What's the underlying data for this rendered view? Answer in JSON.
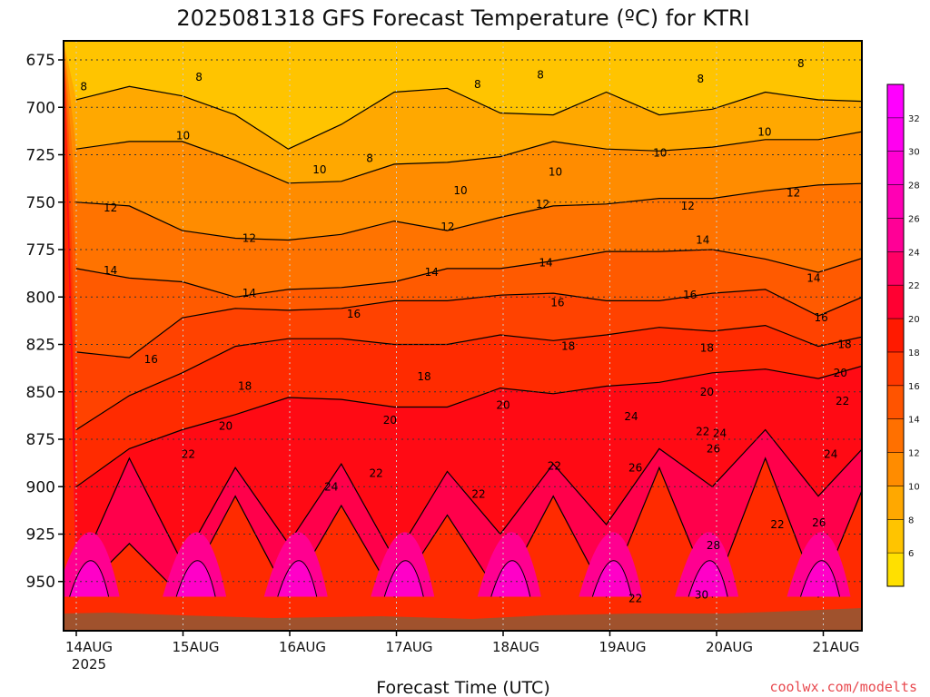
{
  "chart_data": {
    "type": "heatmap",
    "title": "2025081318 GFS Forecast Temperature (ºC) for KTRI",
    "xlabel": "Forecast Time (UTC)",
    "ylabel": "",
    "credit": "coolwx.com/modelts",
    "ylim": [
      960,
      660
    ],
    "xlim": [
      0.0,
      7.45
    ],
    "x_ticks": [
      "14AUG",
      "15AUG",
      "16AUG",
      "17AUG",
      "18AUG",
      "19AUG",
      "20AUG",
      "21AUG"
    ],
    "x_tick_sub": "2025",
    "y_ticks": [
      675,
      700,
      725,
      750,
      775,
      800,
      825,
      850,
      875,
      900,
      925,
      950
    ],
    "colorbar": {
      "levels": [
        6,
        8,
        10,
        12,
        14,
        16,
        18,
        20,
        22,
        24,
        26,
        28,
        30,
        32
      ],
      "colors": [
        "#ffe000",
        "#ffc400",
        "#ffa800",
        "#ff8c00",
        "#ff7000",
        "#ff5400",
        "#ff3800",
        "#ff1a00",
        "#ff0032",
        "#ff0064",
        "#ff0096",
        "#ff00b4",
        "#ff00d2",
        "#ff00f0",
        "#ff00ff"
      ]
    },
    "series": [
      {
        "level": 8,
        "pressure": [
          696,
          689,
          694,
          704,
          722,
          709,
          692,
          690,
          703,
          704,
          692,
          704,
          701,
          692,
          696,
          697
        ]
      },
      {
        "level": 10,
        "pressure": [
          722,
          718,
          718,
          728,
          740,
          739,
          730,
          729,
          726,
          718,
          722,
          723,
          721,
          717,
          717,
          712
        ]
      },
      {
        "level": 12,
        "pressure": [
          750,
          752,
          765,
          769,
          770,
          767,
          760,
          765,
          758,
          752,
          751,
          748,
          748,
          744,
          741,
          740
        ]
      },
      {
        "level": 14,
        "pressure": [
          785,
          790,
          792,
          800,
          796,
          795,
          792,
          785,
          785,
          781,
          776,
          776,
          775,
          780,
          787,
          778
        ]
      },
      {
        "level": 16,
        "pressure": [
          829,
          832,
          811,
          806,
          807,
          806,
          802,
          802,
          799,
          798,
          802,
          802,
          798,
          796,
          810,
          798
        ]
      },
      {
        "level": 18,
        "pressure": [
          870,
          852,
          840,
          826,
          822,
          822,
          825,
          825,
          820,
          823,
          820,
          816,
          818,
          815,
          826,
          820
        ]
      },
      {
        "level": 20,
        "pressure": [
          900,
          880,
          870,
          862,
          853,
          854,
          858,
          858,
          848,
          851,
          847,
          845,
          840,
          838,
          843,
          835
        ]
      },
      {
        "level": 22,
        "pressure": [
          948,
          885,
          940,
          890,
          930,
          888,
          938,
          892,
          925,
          888,
          920,
          880,
          900,
          870,
          905,
          875
        ]
      },
      {
        "level": 24,
        "pressure": [
          958,
          930,
          958,
          905,
          958,
          910,
          958,
          915,
          958,
          905,
          958,
          890,
          958,
          885,
          958,
          890
        ]
      }
    ],
    "contour_labels": [
      {
        "text": "8",
        "x": 0.07,
        "p": 689
      },
      {
        "text": "8",
        "x": 1.15,
        "p": 684
      },
      {
        "text": "8",
        "x": 2.75,
        "p": 727
      },
      {
        "text": "8",
        "x": 3.76,
        "p": 688
      },
      {
        "text": "8",
        "x": 4.35,
        "p": 683
      },
      {
        "text": "8",
        "x": 5.85,
        "p": 685
      },
      {
        "text": "8",
        "x": 6.79,
        "p": 677
      },
      {
        "text": "10",
        "x": 1.0,
        "p": 715
      },
      {
        "text": "10",
        "x": 2.28,
        "p": 733
      },
      {
        "text": "10",
        "x": 3.6,
        "p": 744
      },
      {
        "text": "10",
        "x": 4.49,
        "p": 734
      },
      {
        "text": "10",
        "x": 5.47,
        "p": 724
      },
      {
        "text": "10",
        "x": 6.45,
        "p": 713
      },
      {
        "text": "12",
        "x": 0.32,
        "p": 753
      },
      {
        "text": "12",
        "x": 1.62,
        "p": 769
      },
      {
        "text": "12",
        "x": 3.48,
        "p": 763
      },
      {
        "text": "12",
        "x": 4.37,
        "p": 751
      },
      {
        "text": "12",
        "x": 5.73,
        "p": 752
      },
      {
        "text": "12",
        "x": 6.72,
        "p": 745
      },
      {
        "text": "14",
        "x": 0.32,
        "p": 786
      },
      {
        "text": "14",
        "x": 1.62,
        "p": 798
      },
      {
        "text": "14",
        "x": 3.33,
        "p": 787
      },
      {
        "text": "14",
        "x": 4.4,
        "p": 782
      },
      {
        "text": "14",
        "x": 5.87,
        "p": 770
      },
      {
        "text": "14",
        "x": 6.91,
        "p": 790
      },
      {
        "text": "16",
        "x": 0.7,
        "p": 833
      },
      {
        "text": "16",
        "x": 2.6,
        "p": 809
      },
      {
        "text": "16",
        "x": 4.51,
        "p": 803
      },
      {
        "text": "16",
        "x": 5.75,
        "p": 799
      },
      {
        "text": "16",
        "x": 6.98,
        "p": 811
      },
      {
        "text": "18",
        "x": 1.58,
        "p": 847
      },
      {
        "text": "18",
        "x": 3.26,
        "p": 842
      },
      {
        "text": "18",
        "x": 4.61,
        "p": 826
      },
      {
        "text": "18",
        "x": 5.91,
        "p": 827
      },
      {
        "text": "18",
        "x": 7.2,
        "p": 825
      },
      {
        "text": "20",
        "x": 1.4,
        "p": 868
      },
      {
        "text": "20",
        "x": 2.94,
        "p": 865
      },
      {
        "text": "20",
        "x": 4.0,
        "p": 857
      },
      {
        "text": "20",
        "x": 5.91,
        "p": 850
      },
      {
        "text": "20",
        "x": 7.16,
        "p": 840
      },
      {
        "text": "22",
        "x": 1.05,
        "p": 883
      },
      {
        "text": "22",
        "x": 2.81,
        "p": 893
      },
      {
        "text": "22",
        "x": 3.77,
        "p": 904
      },
      {
        "text": "22",
        "x": 4.48,
        "p": 889
      },
      {
        "text": "22",
        "x": 5.87,
        "p": 871
      },
      {
        "text": "22",
        "x": 6.57,
        "p": 920
      },
      {
        "text": "22",
        "x": 5.24,
        "p": 959
      },
      {
        "text": "22",
        "x": 7.18,
        "p": 855
      },
      {
        "text": "24",
        "x": 2.39,
        "p": 900
      },
      {
        "text": "24",
        "x": 5.2,
        "p": 863
      },
      {
        "text": "24",
        "x": 6.03,
        "p": 872
      },
      {
        "text": "24",
        "x": 7.07,
        "p": 883
      },
      {
        "text": "26",
        "x": 5.24,
        "p": 890
      },
      {
        "text": "26",
        "x": 5.97,
        "p": 880
      },
      {
        "text": "26",
        "x": 6.96,
        "p": 919
      },
      {
        "text": "28",
        "x": 5.97,
        "p": 931
      },
      {
        "text": "30",
        "x": 5.86,
        "p": 957
      }
    ]
  }
}
